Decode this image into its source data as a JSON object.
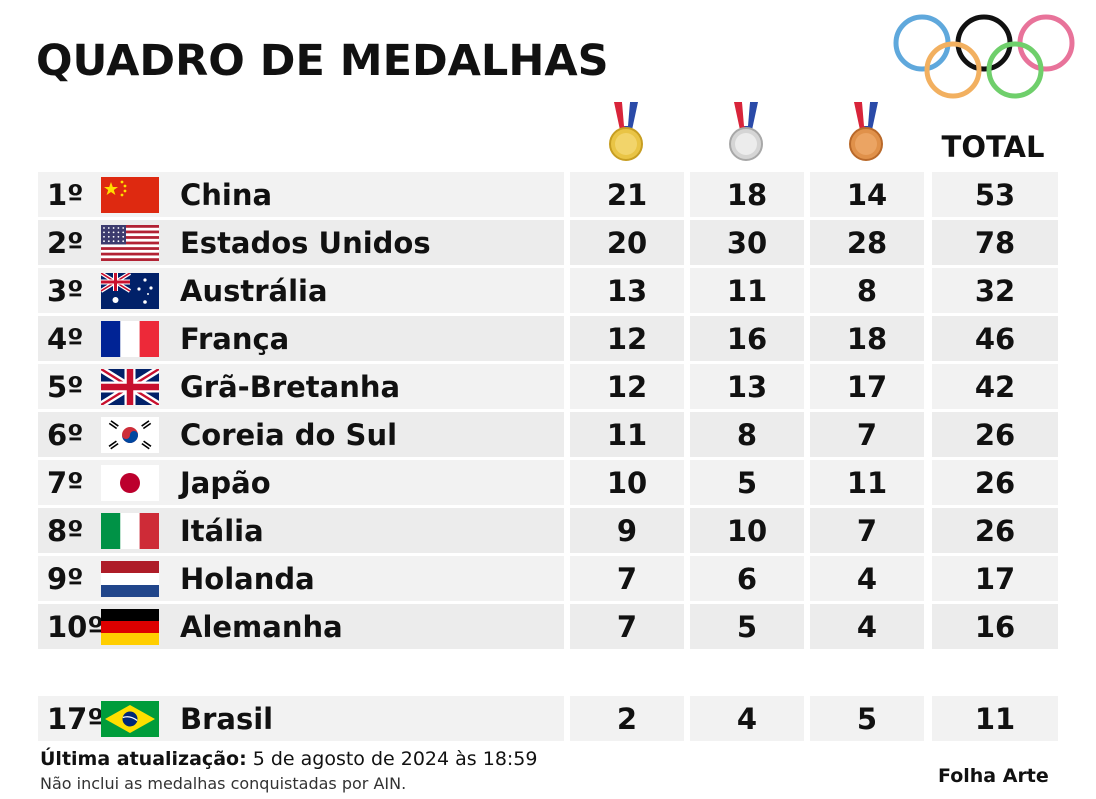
{
  "title": "QUADRO DE MEDALHAS",
  "header": {
    "gold_icon": "gold-medal-icon",
    "silver_icon": "silver-medal-icon",
    "bronze_icon": "bronze-medal-icon",
    "total_label": "TOTAL"
  },
  "colors": {
    "ring_blue": "#5fa8dc",
    "ring_black": "#111111",
    "ring_pink": "#e8739a",
    "ring_yellow": "#f2b060",
    "ring_green": "#6fcf6b",
    "row_bg": "#efefef"
  },
  "chart_data": {
    "type": "table",
    "columns": [
      "",
      "",
      "",
      "TOTAL"
    ],
    "rows": [
      {
        "rank": "1º",
        "country": "China",
        "flag": "china-flag",
        "gold": 21,
        "silver": 18,
        "bronze": 14,
        "total": 53
      },
      {
        "rank": "2º",
        "country": "Estados Unidos",
        "flag": "usa-flag",
        "gold": 20,
        "silver": 30,
        "bronze": 28,
        "total": 78
      },
      {
        "rank": "3º",
        "country": "Austrália",
        "flag": "australia-flag",
        "gold": 13,
        "silver": 11,
        "bronze": 8,
        "total": 32
      },
      {
        "rank": "4º",
        "country": "França",
        "flag": "france-flag",
        "gold": 12,
        "silver": 16,
        "bronze": 18,
        "total": 46
      },
      {
        "rank": "5º",
        "country": "Grã-Bretanha",
        "flag": "uk-flag",
        "gold": 12,
        "silver": 13,
        "bronze": 17,
        "total": 42
      },
      {
        "rank": "6º",
        "country": "Coreia do Sul",
        "flag": "south-korea-flag",
        "gold": 11,
        "silver": 8,
        "bronze": 7,
        "total": 26
      },
      {
        "rank": "7º",
        "country": "Japão",
        "flag": "japan-flag",
        "gold": 10,
        "silver": 5,
        "bronze": 11,
        "total": 26
      },
      {
        "rank": "8º",
        "country": "Itália",
        "flag": "italy-flag",
        "gold": 9,
        "silver": 10,
        "bronze": 7,
        "total": 26
      },
      {
        "rank": "9º",
        "country": "Holanda",
        "flag": "netherlands-flag",
        "gold": 7,
        "silver": 6,
        "bronze": 4,
        "total": 17
      },
      {
        "rank": "10º",
        "country": "Alemanha",
        "flag": "germany-flag",
        "gold": 7,
        "silver": 5,
        "bronze": 4,
        "total": 16
      }
    ],
    "highlight_row": {
      "rank": "17º",
      "country": "Brasil",
      "flag": "brazil-flag",
      "gold": 2,
      "silver": 4,
      "bronze": 5,
      "total": 11
    }
  },
  "footer": {
    "update_label": "Última atualização:",
    "update_value": " 5 de agosto de 2024 às 18:59",
    "note": "Não inclui as medalhas conquistadas por AIN.",
    "credit": "Folha Arte"
  }
}
